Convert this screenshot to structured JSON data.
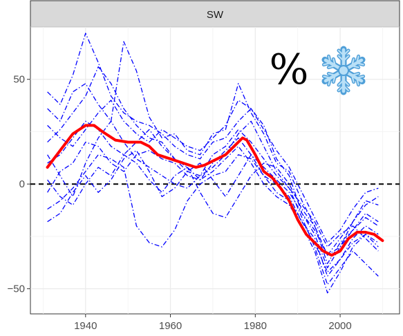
{
  "chart_data": {
    "type": "line",
    "panel": "SW",
    "annotation": "%",
    "icon": "snowflake-icon",
    "xlim": [
      1927,
      2014
    ],
    "ylim": [
      -62,
      75
    ],
    "x_ticks": [
      1940,
      1960,
      1980,
      2000
    ],
    "y_ticks": [
      -50,
      0,
      50
    ],
    "grid": true,
    "reference_line": {
      "y": 0,
      "style": "dashed",
      "color": "#000000"
    },
    "colors": {
      "members": "#0000ff",
      "mean": "#ff0000",
      "snowflake": "#8cc7ee"
    },
    "mean": {
      "x": [
        1931,
        1934,
        1937,
        1940,
        1942,
        1944,
        1947,
        1950,
        1953,
        1955,
        1957,
        1960,
        1963,
        1966,
        1968,
        1971,
        1973,
        1975,
        1977,
        1978,
        1980,
        1982,
        1984,
        1986,
        1988,
        1990,
        1992,
        1994,
        1996,
        1998,
        2000,
        2002,
        2004,
        2006,
        2008,
        2010
      ],
      "y": [
        8,
        16,
        24,
        28,
        28,
        25,
        21,
        20,
        20,
        18,
        14,
        12,
        10,
        8,
        9,
        12,
        14,
        18,
        22,
        21,
        14,
        6,
        3,
        -2,
        -8,
        -17,
        -24,
        -28,
        -32,
        -34,
        -32,
        -26,
        -23,
        -23,
        -24,
        -27
      ]
    },
    "members": [
      {
        "x": [
          1931,
          1934,
          1937,
          1940,
          1943,
          1946,
          1949,
          1952,
          1955,
          1958,
          1961,
          1964,
          1967,
          1970,
          1973,
          1976,
          1979,
          1982,
          1985,
          1988,
          1991,
          1994,
          1997,
          2000,
          2003,
          2006,
          2009
        ],
        "y": [
          44,
          38,
          52,
          72,
          58,
          42,
          34,
          30,
          28,
          24,
          18,
          14,
          12,
          20,
          22,
          30,
          36,
          28,
          12,
          4,
          -14,
          -22,
          -34,
          -30,
          -18,
          -8,
          -10
        ]
      },
      {
        "x": [
          1931,
          1934,
          1937,
          1940,
          1943,
          1946,
          1949,
          1952,
          1955,
          1958,
          1961,
          1964,
          1967,
          1970,
          1973,
          1976,
          1979,
          1982,
          1985,
          1988,
          1991,
          1994,
          1997,
          2000,
          2003,
          2006,
          2009
        ],
        "y": [
          36,
          30,
          44,
          48,
          38,
          30,
          68,
          54,
          32,
          22,
          24,
          16,
          14,
          24,
          26,
          48,
          34,
          24,
          10,
          6,
          -8,
          -20,
          -38,
          -28,
          -22,
          -16,
          -20
        ]
      },
      {
        "x": [
          1931,
          1934,
          1937,
          1940,
          1943,
          1946,
          1949,
          1952,
          1955,
          1958,
          1961,
          1964,
          1967,
          1970,
          1973,
          1976,
          1979,
          1982,
          1985,
          1988,
          1991,
          1994,
          1997,
          2000,
          2003,
          2006,
          2009
        ],
        "y": [
          20,
          26,
          34,
          42,
          56,
          48,
          36,
          28,
          22,
          20,
          12,
          8,
          2,
          10,
          16,
          22,
          14,
          4,
          0,
          -6,
          -18,
          -28,
          -42,
          -36,
          -26,
          -20,
          -24
        ]
      },
      {
        "x": [
          1931,
          1934,
          1937,
          1940,
          1943,
          1946,
          1949,
          1952,
          1955,
          1958,
          1961,
          1964,
          1967,
          1970,
          1973,
          1976,
          1979,
          1982,
          1985,
          1988,
          1991,
          1994,
          1997,
          2000,
          2003,
          2006,
          2009
        ],
        "y": [
          10,
          14,
          22,
          30,
          26,
          18,
          14,
          20,
          26,
          18,
          12,
          6,
          4,
          14,
          18,
          26,
          20,
          12,
          4,
          -2,
          -16,
          -30,
          -48,
          -40,
          -32,
          -38,
          -44
        ]
      },
      {
        "x": [
          1931,
          1934,
          1937,
          1940,
          1943,
          1946,
          1949,
          1952,
          1955,
          1958,
          1961,
          1964,
          1967,
          1970,
          1973,
          1976,
          1979,
          1982,
          1985,
          1988,
          1991,
          1994,
          1997,
          2000,
          2003,
          2006,
          2009
        ],
        "y": [
          -4,
          6,
          10,
          20,
          18,
          10,
          6,
          14,
          16,
          12,
          10,
          4,
          2,
          6,
          12,
          18,
          10,
          0,
          -6,
          -10,
          -20,
          -32,
          -52,
          -42,
          -30,
          -24,
          -30
        ]
      },
      {
        "x": [
          1931,
          1934,
          1937,
          1940,
          1943,
          1946,
          1949,
          1952,
          1955,
          1958,
          1961,
          1964,
          1967,
          1970,
          1973,
          1976,
          1979,
          1982,
          1985,
          1988,
          1991,
          1994,
          1997,
          2000,
          2003,
          2006,
          2009
        ],
        "y": [
          -12,
          -8,
          -2,
          6,
          14,
          12,
          8,
          -20,
          -28,
          -30,
          -22,
          -8,
          0,
          4,
          6,
          14,
          12,
          4,
          -4,
          -8,
          -18,
          -26,
          -44,
          -36,
          -28,
          -24,
          -28
        ]
      },
      {
        "x": [
          1931,
          1934,
          1937,
          1940,
          1943,
          1946,
          1949,
          1952,
          1955,
          1958,
          1961,
          1964,
          1967,
          1970,
          1973,
          1976,
          1979,
          1982,
          1985,
          1988,
          1991,
          1994,
          1997,
          2000,
          2003,
          2006,
          2009
        ],
        "y": [
          -18,
          -14,
          -4,
          4,
          -4,
          2,
          12,
          16,
          6,
          -6,
          -2,
          6,
          10,
          2,
          -6,
          4,
          14,
          8,
          2,
          -4,
          -14,
          -24,
          -40,
          -30,
          -22,
          -14,
          -18
        ]
      },
      {
        "x": [
          1931,
          1934,
          1937,
          1940,
          1943,
          1946,
          1949,
          1952,
          1955,
          1958,
          1961,
          1964,
          1967,
          1970,
          1973,
          1976,
          1979,
          1982,
          1985,
          1988,
          1991,
          1994,
          1997,
          2000,
          2003,
          2006,
          2009
        ],
        "y": [
          2,
          -6,
          -10,
          0,
          8,
          4,
          14,
          10,
          2,
          -4,
          4,
          8,
          -4,
          -14,
          -16,
          -6,
          4,
          10,
          8,
          0,
          -12,
          -20,
          -34,
          -26,
          -18,
          -10,
          -6
        ]
      },
      {
        "x": [
          1931,
          1934,
          1937,
          1940,
          1943,
          1946,
          1949,
          1952,
          1955,
          1958,
          1961,
          1964,
          1967,
          1970,
          1973,
          1976,
          1979,
          1982,
          1985,
          1988,
          1991,
          1994,
          1997,
          2000,
          2003,
          2006,
          2009
        ],
        "y": [
          28,
          22,
          18,
          26,
          34,
          40,
          30,
          24,
          20,
          26,
          22,
          18,
          16,
          22,
          28,
          40,
          36,
          26,
          16,
          8,
          -4,
          -16,
          -28,
          -22,
          -12,
          -4,
          -2
        ]
      },
      {
        "x": [
          1931,
          1934,
          1937,
          1940,
          1943,
          1946,
          1949,
          1952,
          1955,
          1958,
          1961,
          1964,
          1967,
          1970,
          1973,
          1976,
          1979,
          1982,
          1985,
          1988,
          1991,
          1994,
          1997,
          2000,
          2003,
          2006,
          2009
        ],
        "y": [
          14,
          4,
          -6,
          10,
          22,
          30,
          20,
          12,
          8,
          4,
          0,
          -2,
          4,
          8,
          14,
          24,
          30,
          18,
          6,
          -2,
          -10,
          -18,
          -30,
          -24,
          -20,
          -26,
          -32
        ]
      }
    ]
  }
}
